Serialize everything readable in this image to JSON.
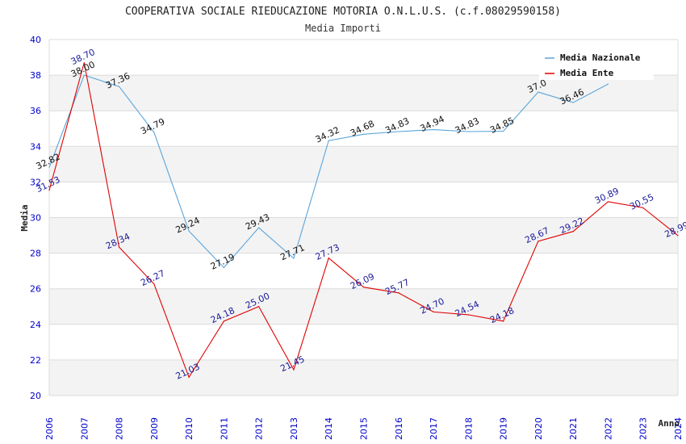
{
  "chart_data": {
    "type": "line",
    "title": "COOPERATIVA SOCIALE RIEDUCAZIONE MOTORIA O.N.L.U.S. (c.f.08029590158)",
    "subtitle": "Media Importi",
    "xlabel": "Anno",
    "ylabel": "Media",
    "ylim": [
      20,
      40
    ],
    "yticks": [
      20,
      22,
      24,
      26,
      28,
      30,
      32,
      34,
      36,
      38,
      40
    ],
    "x": [
      "2006",
      "2007",
      "2008",
      "2009",
      "2010",
      "2011",
      "2012",
      "2013",
      "2014",
      "2015",
      "2016",
      "2017",
      "2018",
      "2019",
      "2020",
      "2021",
      "2022",
      "2023",
      "2024"
    ],
    "grid": true,
    "legend_position": "top-right",
    "series": [
      {
        "name": "Media Nazionale",
        "color": "#5aa5dc",
        "label_color": "#111111",
        "values": [
          32.82,
          38.0,
          37.36,
          34.79,
          29.24,
          27.19,
          29.43,
          27.71,
          34.32,
          34.68,
          34.83,
          34.94,
          34.83,
          34.85,
          37.05,
          36.46,
          37.5,
          null,
          null
        ],
        "labels": [
          "32.82",
          "38.00",
          "37.36",
          "34.79",
          "29.24",
          "27.19",
          "29.43",
          "27.71",
          "34.32",
          "34.68",
          "34.83",
          "34.94",
          "34.83",
          "34.85",
          "37.0",
          "36.46",
          "",
          "",
          ""
        ]
      },
      {
        "name": "Media Ente",
        "color": "#e00000",
        "label_color": "#1a1a99",
        "values": [
          31.53,
          38.7,
          28.34,
          26.27,
          21.03,
          24.18,
          25.0,
          21.45,
          27.73,
          26.09,
          25.77,
          24.7,
          24.54,
          24.18,
          28.67,
          29.22,
          30.89,
          30.55,
          28.99
        ],
        "labels": [
          "31.53",
          "38.70",
          "28.34",
          "26.27",
          "21.03",
          "24.18",
          "25.00",
          "21.45",
          "27.73",
          "26.09",
          "25.77",
          "24.70",
          "24.54",
          "24.18",
          "28.67",
          "29.22",
          "30.89",
          "30.55",
          "28.99"
        ]
      }
    ]
  }
}
